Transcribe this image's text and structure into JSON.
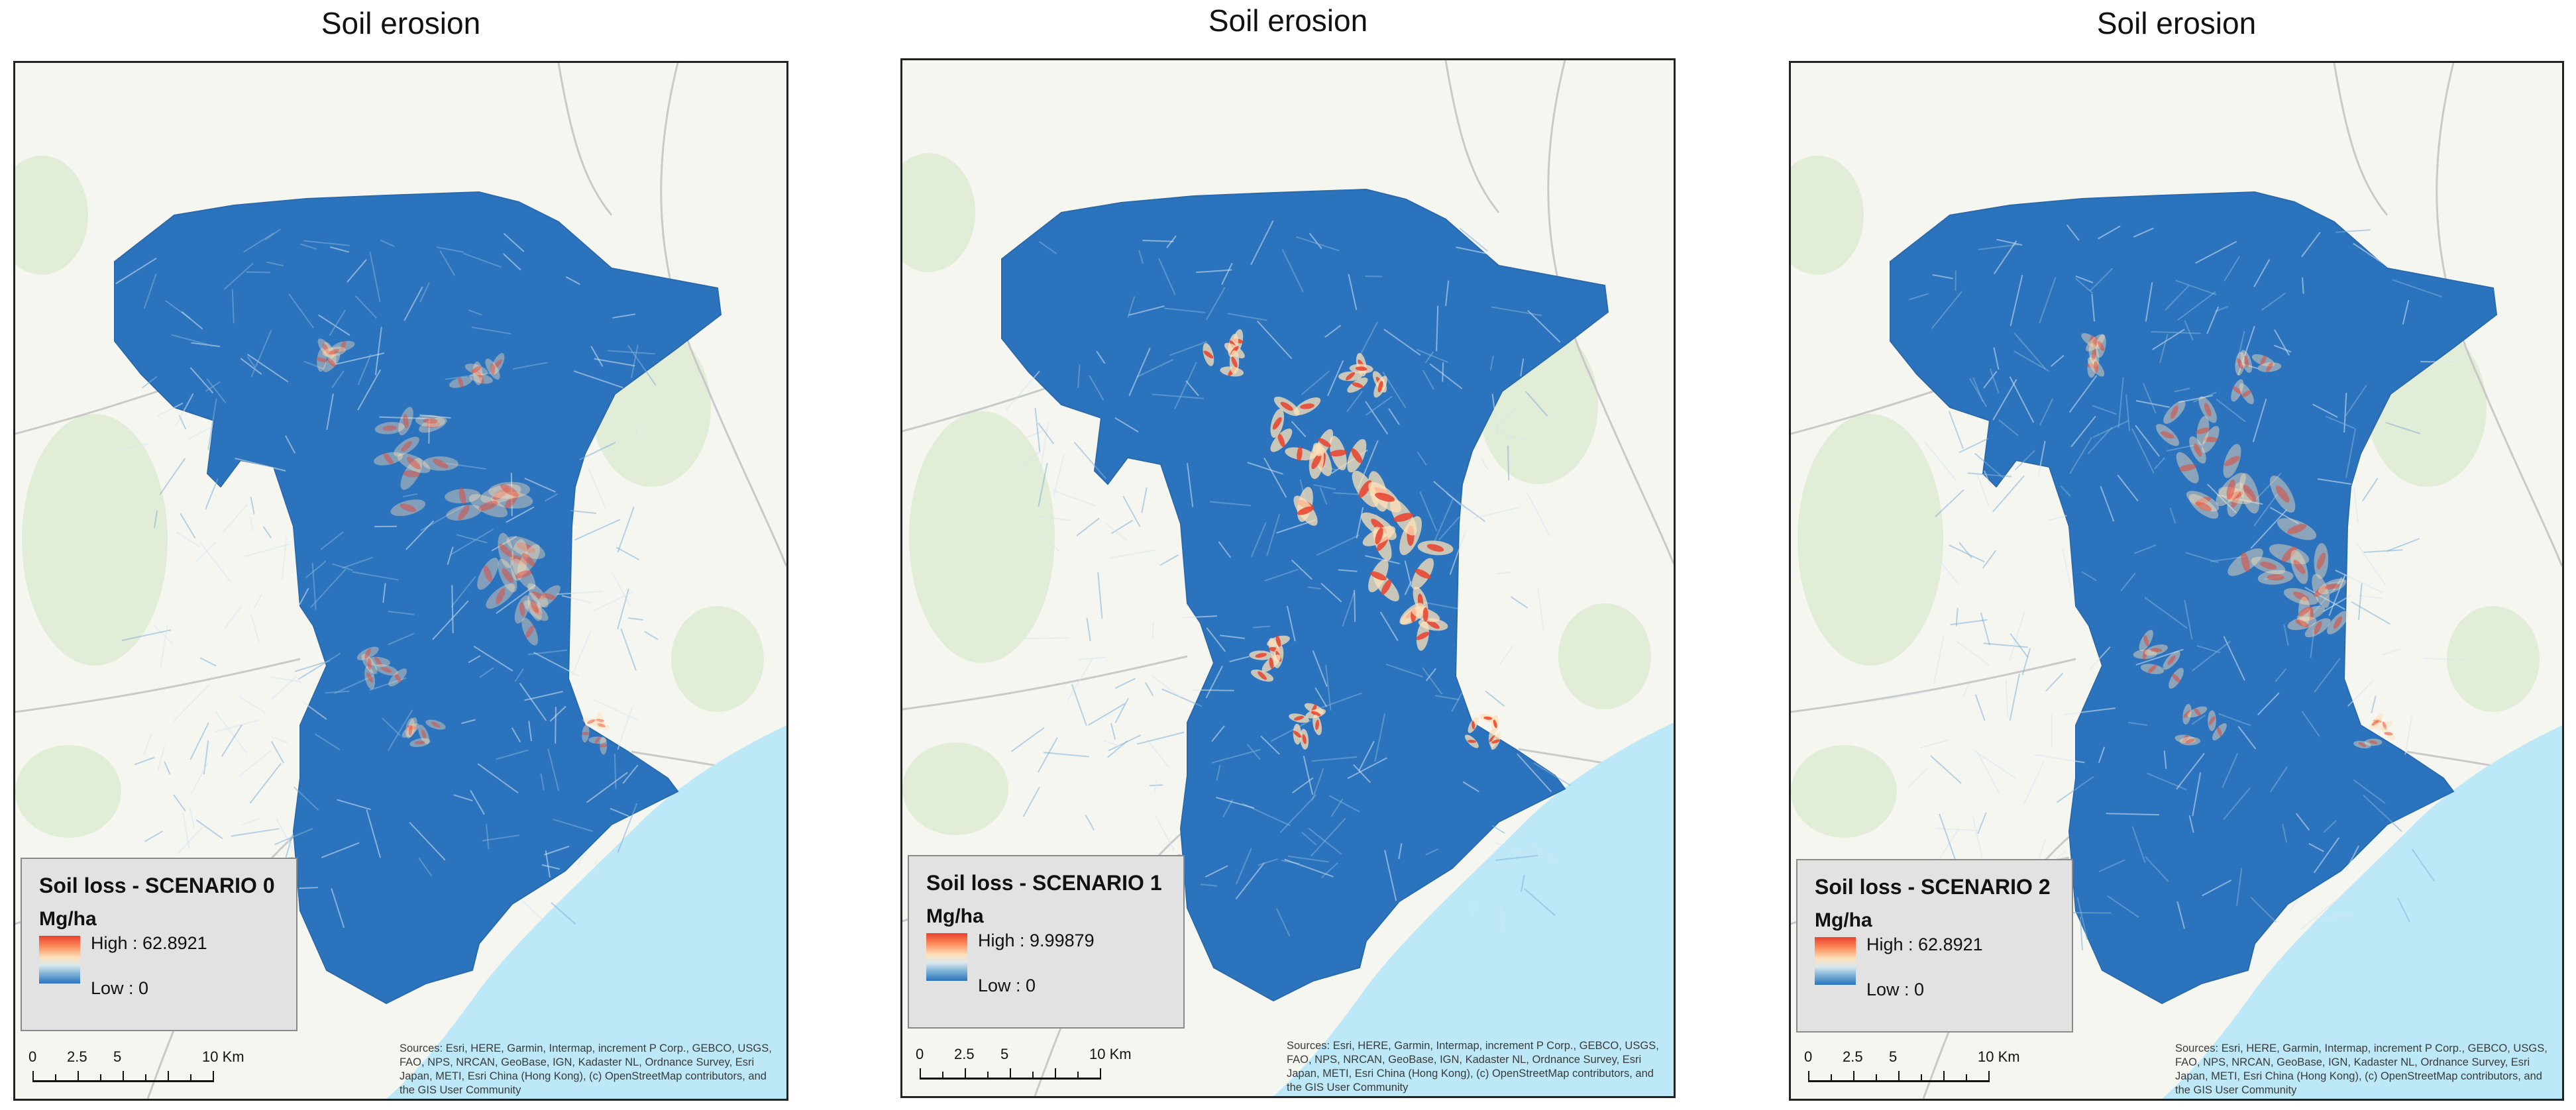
{
  "panels": [
    {
      "title": "Soil erosion",
      "legend": {
        "title": "Soil loss - SCENARIO 0",
        "unit": "Mg/ha",
        "high": "High : 62.8921",
        "low": "Low : 0"
      },
      "hotspot_intensity": 0.55
    },
    {
      "title": "Soil erosion",
      "legend": {
        "title": "Soil loss  - SCENARIO 1",
        "unit": "Mg/ha",
        "high": "High : 9.99879",
        "low": "Low : 0"
      },
      "hotspot_intensity": 1.0
    },
    {
      "title": "Soil erosion",
      "legend": {
        "title": "Soil loss - SCENARIO 2",
        "unit": "Mg/ha",
        "high": "High : 62.8921",
        "low": "Low : 0"
      },
      "hotspot_intensity": 0.6
    }
  ],
  "scale_bar": {
    "labels": [
      "0",
      "2.5",
      "5",
      "10 Km"
    ]
  },
  "credits": "Sources: Esri, HERE, Garmin, Intermap, increment P Corp., GEBCO, USGS, FAO, NPS, NRCAN, GeoBase, IGN, Kadaster NL, Ordnance Survey, Esri Japan, METI, Esri China (Hong Kong), (c) OpenStreetMap contributors, and the GIS User Community",
  "colors": {
    "low": "#2b73bd",
    "mid": "#fde0b8",
    "high": "#e8402c",
    "sea": "#bde8f7",
    "basemap": "#f6f6f1",
    "vegetation": "#dcebcf"
  }
}
